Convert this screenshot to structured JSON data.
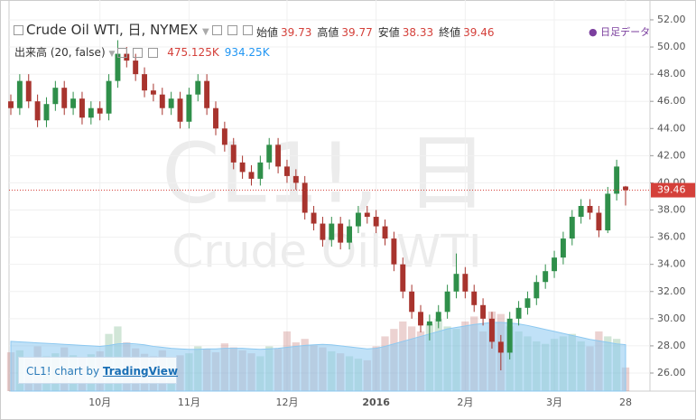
{
  "header": {
    "symbol": "Crude Oil WTI, 日, NYMEX",
    "ohlc": [
      {
        "label": "始値",
        "value": "39.73"
      },
      {
        "label": "高値",
        "value": "39.77"
      },
      {
        "label": "安値",
        "value": "38.33"
      },
      {
        "label": "終値",
        "value": "39.46"
      }
    ],
    "volume_study": "出来高 (20, false)",
    "volume_values": [
      "475.125K",
      "934.25K"
    ],
    "data_link": "日足データ"
  },
  "watermark": [
    "CL1!, 日",
    "Crude Oil WTI"
  ],
  "credit": {
    "text": "CL1! chart by",
    "link": "TradingView"
  },
  "chart_data": {
    "type": "candlestick",
    "categories": [
      null,
      null,
      null,
      null,
      null,
      null,
      null,
      null,
      null,
      null,
      "10月",
      null,
      null,
      null,
      null,
      null,
      null,
      null,
      null,
      null,
      "11月",
      null,
      null,
      null,
      null,
      null,
      null,
      null,
      null,
      null,
      null,
      "12月",
      null,
      null,
      null,
      null,
      null,
      null,
      null,
      null,
      null,
      "2016",
      null,
      null,
      null,
      null,
      null,
      null,
      null,
      null,
      null,
      "2月",
      null,
      null,
      null,
      null,
      null,
      null,
      null,
      null,
      null,
      "3月",
      null,
      null,
      null,
      null,
      null,
      null,
      null,
      "28"
    ],
    "open": [
      46.0,
      45.5,
      47.5,
      46,
      44.6,
      45.8,
      47,
      45.5,
      46.2,
      44.8,
      45.5,
      45.1,
      47.5,
      49.5,
      49,
      48,
      46.8,
      46.5,
      45.5,
      46.2,
      44.5,
      46.5,
      47.5,
      45.5,
      44,
      42.8,
      41.5,
      40.8,
      40.3,
      41.5,
      42.8,
      41.2,
      40.5,
      40,
      37.8,
      37,
      35.8,
      37,
      35.6,
      36.8,
      37.8,
      37.5,
      36.8,
      35.9,
      34,
      32,
      30.5,
      29.5,
      29.8,
      30.5,
      32,
      33.3,
      32,
      31,
      30,
      28.3,
      27.5,
      30,
      30.8,
      31.5,
      32.7,
      33.5,
      34.5,
      35.9,
      37.5,
      38.3,
      37.8,
      36.5,
      39.2,
      39.73
    ],
    "high": [
      46.5,
      48.0,
      48.0,
      46.5,
      46.3,
      47.5,
      47.5,
      46.7,
      46.7,
      46.0,
      46.0,
      48.0,
      50.5,
      50.0,
      49.5,
      48.5,
      47.3,
      47.0,
      46.7,
      46.7,
      47.0,
      48.0,
      48.0,
      46.0,
      44.5,
      43.3,
      42.0,
      41.3,
      42.0,
      43.3,
      43.3,
      41.7,
      41.0,
      40.5,
      38.3,
      37.5,
      37.5,
      37.5,
      37.3,
      38.3,
      38.3,
      38.0,
      37.3,
      36.4,
      34.5,
      32.5,
      31.0,
      30.3,
      31.0,
      32.5,
      34.8,
      33.8,
      32.5,
      31.5,
      30.5,
      28.8,
      30.5,
      31.3,
      32.0,
      33.2,
      34.0,
      35.0,
      36.4,
      38.0,
      38.8,
      38.8,
      38.3,
      39.7,
      41.7,
      39.77
    ],
    "low": [
      45.0,
      45.0,
      45.5,
      44.1,
      44.1,
      45.3,
      45.0,
      45.0,
      44.3,
      44.3,
      44.6,
      44.6,
      47.0,
      48.5,
      47.5,
      46.3,
      46.0,
      45.0,
      45.0,
      44.0,
      44.0,
      46.0,
      45.0,
      43.5,
      42.3,
      41.0,
      40.3,
      39.8,
      39.8,
      41.0,
      40.7,
      40.0,
      39.5,
      37.3,
      36.5,
      35.3,
      35.3,
      35.1,
      35.1,
      36.3,
      37.0,
      36.3,
      35.4,
      33.5,
      31.5,
      30.0,
      29.0,
      28.4,
      29.3,
      30.0,
      31.5,
      31.5,
      30.5,
      29.5,
      27.8,
      26.2,
      27.0,
      29.5,
      30.3,
      31.0,
      32.2,
      33.0,
      34.0,
      35.4,
      37.0,
      37.3,
      36.0,
      36.3,
      38.7,
      38.33
    ],
    "close": [
      45.5,
      47.5,
      46,
      44.6,
      45.8,
      47,
      45.5,
      46.2,
      44.8,
      45.5,
      45.1,
      47.5,
      49.5,
      49,
      48,
      46.8,
      46.5,
      45.5,
      46.2,
      44.5,
      46.5,
      47.5,
      45.5,
      44,
      42.8,
      41.5,
      40.8,
      40.3,
      41.5,
      42.8,
      41.2,
      40.5,
      40,
      37.8,
      37,
      35.8,
      37,
      35.6,
      36.8,
      37.8,
      37.5,
      36.8,
      35.9,
      34,
      32,
      30.5,
      29.5,
      29.8,
      30.5,
      32,
      33.3,
      32,
      31,
      30,
      28.3,
      27.5,
      30,
      30.8,
      31.5,
      32.7,
      33.5,
      34.5,
      35.9,
      37.5,
      38.3,
      37.8,
      36.5,
      39.2,
      41.2,
      39.46
    ],
    "volume": [
      780000,
      820000,
      650000,
      900000,
      700000,
      760000,
      880000,
      720000,
      690000,
      740000,
      800000,
      1150000,
      1300000,
      980000,
      860000,
      750000,
      700000,
      820000,
      680000,
      720000,
      760000,
      900000,
      850000,
      780000,
      960000,
      880000,
      820000,
      760000,
      700000,
      900000,
      850000,
      1200000,
      980000,
      1050000,
      920000,
      880000,
      800000,
      760000,
      700000,
      650000,
      620000,
      900000,
      1100000,
      1250000,
      1400000,
      1300000,
      1200000,
      1350000,
      1450000,
      1300000,
      1250000,
      1400000,
      1500000,
      1200000,
      1600000,
      1550000,
      1300000,
      1200000,
      1100000,
      1000000,
      950000,
      1050000,
      1100000,
      1150000,
      1000000,
      900000,
      1200000,
      1100000,
      1050000,
      475125
    ],
    "volume_ma": [
      1000000,
      990000,
      980000,
      970000,
      960000,
      950000,
      940000,
      930000,
      920000,
      910000,
      900000,
      920000,
      950000,
      960000,
      950000,
      930000,
      900000,
      880000,
      860000,
      850000,
      840000,
      840000,
      850000,
      850000,
      860000,
      860000,
      860000,
      850000,
      840000,
      850000,
      860000,
      880000,
      900000,
      920000,
      930000,
      940000,
      930000,
      910000,
      890000,
      870000,
      850000,
      860000,
      900000,
      950000,
      1000000,
      1050000,
      1100000,
      1150000,
      1200000,
      1250000,
      1280000,
      1310000,
      1340000,
      1360000,
      1380000,
      1380000,
      1370000,
      1350000,
      1320000,
      1280000,
      1240000,
      1200000,
      1160000,
      1120000,
      1080000,
      1040000,
      1010000,
      980000,
      950000,
      934250
    ],
    "ylim": [
      24.67,
      52.13
    ],
    "yticks": [
      {
        "value": 26,
        "label": "26.00"
      },
      {
        "value": 28,
        "label": "28.00"
      },
      {
        "value": 30,
        "label": "30.00"
      },
      {
        "value": 32,
        "label": "32.00"
      },
      {
        "value": 34,
        "label": "34.00"
      },
      {
        "value": 36,
        "label": "36.00"
      },
      {
        "value": 38,
        "label": "38.00"
      },
      {
        "value": 40,
        "label": "40.00"
      },
      {
        "value": 42,
        "label": "42.00"
      },
      {
        "value": 44,
        "label": "44.00"
      },
      {
        "value": 46,
        "label": "46.00"
      },
      {
        "value": 48,
        "label": "48.00"
      },
      {
        "value": 50,
        "label": "50.00"
      },
      {
        "value": 52,
        "label": "52.00"
      }
    ],
    "y2lim": [
      0,
      7500000
    ],
    "grid": true,
    "up_color": "#2f8f4a",
    "down_color": "#a8342e",
    "volume_ma_color": "#8cc8f0",
    "last_price_color": "#d4403a"
  }
}
